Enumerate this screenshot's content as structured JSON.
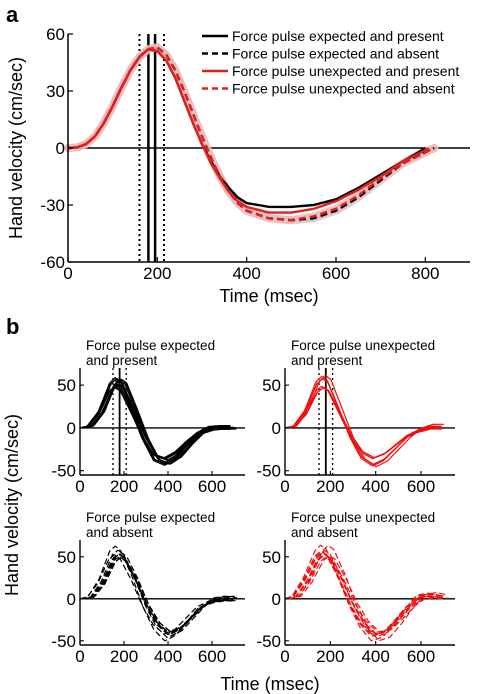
{
  "panel_a_label": "a",
  "panel_b_label": "b",
  "chart_data": [
    {
      "type": "line",
      "panel": "a",
      "xlabel": "Time (msec)",
      "ylabel": "Hand velocity (cm/sec)",
      "xlim": [
        0,
        900
      ],
      "ylim": [
        -60,
        60
      ],
      "xticks": [
        0,
        200,
        400,
        600,
        800
      ],
      "yticks": [
        -60,
        -30,
        0,
        30,
        60
      ],
      "vlines": {
        "solid": [
          180,
          195
        ],
        "dotted": [
          160,
          215
        ]
      },
      "legend_position": "top-right",
      "series": [
        {
          "name": "Force pulse expected and present",
          "color": "#000000",
          "dash": "solid",
          "points": [
            [
              0,
              0
            ],
            [
              20,
              0.3
            ],
            [
              40,
              2
            ],
            [
              60,
              6
            ],
            [
              80,
              13
            ],
            [
              100,
              22
            ],
            [
              120,
              32
            ],
            [
              140,
              41
            ],
            [
              160,
              48
            ],
            [
              180,
              52
            ],
            [
              200,
              51
            ],
            [
              220,
              46
            ],
            [
              240,
              37
            ],
            [
              260,
              25
            ],
            [
              280,
              13
            ],
            [
              300,
              2
            ],
            [
              320,
              -7
            ],
            [
              340,
              -15
            ],
            [
              360,
              -21
            ],
            [
              380,
              -26
            ],
            [
              400,
              -29
            ],
            [
              450,
              -31
            ],
            [
              500,
              -31
            ],
            [
              550,
              -30
            ],
            [
              600,
              -27
            ],
            [
              650,
              -21
            ],
            [
              700,
              -14
            ],
            [
              750,
              -7
            ],
            [
              800,
              0
            ]
          ]
        },
        {
          "name": "Force pulse expected and absent",
          "color": "#000000",
          "dash": "dashed",
          "points": [
            [
              0,
              0
            ],
            [
              20,
              0.3
            ],
            [
              40,
              2
            ],
            [
              60,
              6
            ],
            [
              80,
              13
            ],
            [
              100,
              22
            ],
            [
              120,
              32
            ],
            [
              140,
              41
            ],
            [
              160,
              48
            ],
            [
              180,
              52
            ],
            [
              200,
              53
            ],
            [
              220,
              49
            ],
            [
              240,
              41
            ],
            [
              260,
              30
            ],
            [
              280,
              18
            ],
            [
              300,
              6
            ],
            [
              320,
              -5
            ],
            [
              340,
              -15
            ],
            [
              360,
              -23
            ],
            [
              380,
              -29
            ],
            [
              400,
              -33
            ],
            [
              450,
              -37
            ],
            [
              500,
              -38
            ],
            [
              550,
              -37
            ],
            [
              600,
              -33
            ],
            [
              650,
              -26
            ],
            [
              700,
              -17
            ],
            [
              750,
              -8
            ],
            [
              820,
              0
            ]
          ]
        },
        {
          "name": "Force pulse unexpected and present",
          "color": "#e02020",
          "dash": "solid",
          "points": [
            [
              0,
              0
            ],
            [
              20,
              0.3
            ],
            [
              40,
              2
            ],
            [
              60,
              6
            ],
            [
              80,
              13
            ],
            [
              100,
              22
            ],
            [
              120,
              32
            ],
            [
              140,
              41
            ],
            [
              160,
              48
            ],
            [
              180,
              52
            ],
            [
              200,
              51
            ],
            [
              220,
              46
            ],
            [
              240,
              37
            ],
            [
              260,
              25
            ],
            [
              280,
              13
            ],
            [
              300,
              2
            ],
            [
              320,
              -8
            ],
            [
              340,
              -16
            ],
            [
              360,
              -23
            ],
            [
              380,
              -28
            ],
            [
              400,
              -31
            ],
            [
              450,
              -34
            ],
            [
              500,
              -34
            ],
            [
              550,
              -32
            ],
            [
              600,
              -28
            ],
            [
              650,
              -22
            ],
            [
              700,
              -15
            ],
            [
              750,
              -7
            ],
            [
              810,
              0
            ]
          ]
        },
        {
          "name": "Force pulse unexpected and absent",
          "color": "#e02020",
          "dash": "dashed",
          "points": [
            [
              0,
              0
            ],
            [
              20,
              0.3
            ],
            [
              40,
              2
            ],
            [
              60,
              6
            ],
            [
              80,
              13
            ],
            [
              100,
              22
            ],
            [
              120,
              32
            ],
            [
              140,
              41
            ],
            [
              160,
              48
            ],
            [
              180,
              52
            ],
            [
              200,
              53
            ],
            [
              220,
              49
            ],
            [
              240,
              41
            ],
            [
              260,
              30
            ],
            [
              280,
              18
            ],
            [
              300,
              6
            ],
            [
              320,
              -5
            ],
            [
              340,
              -15
            ],
            [
              360,
              -23
            ],
            [
              380,
              -29
            ],
            [
              400,
              -33
            ],
            [
              450,
              -37
            ],
            [
              500,
              -38
            ],
            [
              550,
              -36
            ],
            [
              600,
              -32
            ],
            [
              650,
              -25
            ],
            [
              700,
              -16
            ],
            [
              750,
              -8
            ],
            [
              820,
              0
            ]
          ]
        }
      ]
    },
    {
      "type": "line",
      "panel": "b",
      "title": "Force pulse expected and present",
      "title_lines": [
        "Force pulse expected",
        "and present"
      ],
      "xlim": [
        0,
        750
      ],
      "ylim": [
        -55,
        70
      ],
      "xticks": [
        0,
        200,
        400,
        600
      ],
      "yticks": [
        -50,
        0,
        50
      ],
      "vlines": {
        "solid": [
          180
        ],
        "dotted": [
          150,
          210
        ]
      },
      "color": "#000000",
      "dash": "solid",
      "mean_trace": [
        [
          0,
          0
        ],
        [
          50,
          2
        ],
        [
          100,
          18
        ],
        [
          150,
          48
        ],
        [
          175,
          54
        ],
        [
          200,
          50
        ],
        [
          250,
          20
        ],
        [
          300,
          -12
        ],
        [
          350,
          -35
        ],
        [
          400,
          -40
        ],
        [
          450,
          -32
        ],
        [
          500,
          -18
        ],
        [
          550,
          -6
        ],
        [
          600,
          -1
        ],
        [
          650,
          0
        ],
        [
          700,
          0
        ]
      ],
      "trial_count": 12
    },
    {
      "type": "line",
      "panel": "b",
      "title": "Force pulse unexpected and present",
      "title_lines": [
        "Force pulse unexpected",
        "and present"
      ],
      "xlim": [
        0,
        750
      ],
      "ylim": [
        -55,
        70
      ],
      "xticks": [
        0,
        200,
        400,
        600
      ],
      "yticks": [
        -50,
        0,
        50
      ],
      "vlines": {
        "solid": [
          180
        ],
        "dotted": [
          150,
          210
        ]
      },
      "color": "#ee1111",
      "dash": "solid",
      "mean_trace": [
        [
          0,
          0
        ],
        [
          50,
          2
        ],
        [
          100,
          18
        ],
        [
          150,
          48
        ],
        [
          175,
          54
        ],
        [
          200,
          50
        ],
        [
          250,
          20
        ],
        [
          300,
          -10
        ],
        [
          350,
          -32
        ],
        [
          400,
          -40
        ],
        [
          450,
          -34
        ],
        [
          500,
          -22
        ],
        [
          550,
          -10
        ],
        [
          600,
          -2
        ],
        [
          650,
          2
        ],
        [
          700,
          2
        ]
      ],
      "trial_count": 8
    },
    {
      "type": "line",
      "panel": "b",
      "title": "Force pulse expected and absent",
      "title_lines": [
        "Force pulse expected",
        "and absent"
      ],
      "xlim": [
        0,
        750
      ],
      "ylim": [
        -55,
        70
      ],
      "xticks": [
        0,
        200,
        400,
        600
      ],
      "yticks": [
        -50,
        0,
        50
      ],
      "vlines": {
        "solid": [],
        "dotted": []
      },
      "color": "#000000",
      "dash": "dashed",
      "mean_trace": [
        [
          0,
          0
        ],
        [
          50,
          2
        ],
        [
          100,
          20
        ],
        [
          150,
          50
        ],
        [
          175,
          55
        ],
        [
          200,
          50
        ],
        [
          250,
          24
        ],
        [
          300,
          -8
        ],
        [
          350,
          -32
        ],
        [
          400,
          -44
        ],
        [
          450,
          -38
        ],
        [
          500,
          -24
        ],
        [
          550,
          -10
        ],
        [
          600,
          -2
        ],
        [
          650,
          0
        ],
        [
          700,
          0
        ]
      ],
      "trial_count": 10
    },
    {
      "type": "line",
      "panel": "b",
      "title": "Force pulse unexpected and absent",
      "title_lines": [
        "Force pulse unexpected",
        "and absent"
      ],
      "xlim": [
        0,
        750
      ],
      "ylim": [
        -55,
        70
      ],
      "xticks": [
        0,
        200,
        400,
        600
      ],
      "yticks": [
        -50,
        0,
        50
      ],
      "vlines": {
        "solid": [],
        "dotted": []
      },
      "color": "#ee1111",
      "dash": "dashed",
      "mean_trace": [
        [
          0,
          0
        ],
        [
          50,
          3
        ],
        [
          100,
          22
        ],
        [
          150,
          50
        ],
        [
          175,
          56
        ],
        [
          200,
          52
        ],
        [
          250,
          26
        ],
        [
          300,
          -6
        ],
        [
          350,
          -30
        ],
        [
          400,
          -44
        ],
        [
          450,
          -40
        ],
        [
          500,
          -26
        ],
        [
          550,
          -10
        ],
        [
          600,
          2
        ],
        [
          650,
          4
        ],
        [
          700,
          2
        ]
      ],
      "trial_count": 10
    }
  ],
  "panel_b_xlabel": "Time (msec)",
  "panel_b_ylabel": "Hand velocity (cm/sec)"
}
